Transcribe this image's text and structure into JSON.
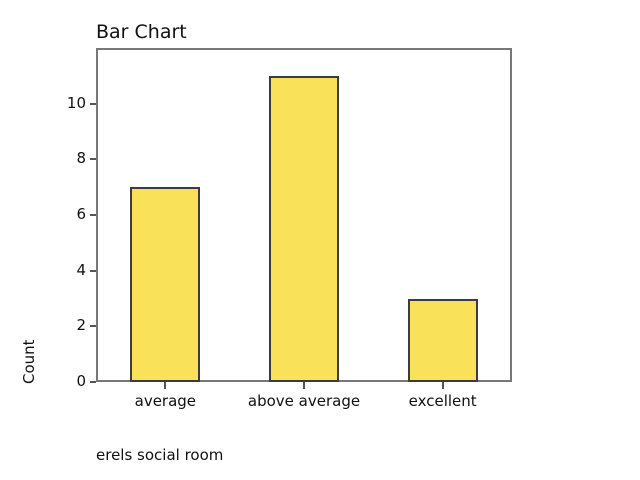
{
  "chart_data": {
    "type": "bar",
    "title": "Bar Chart",
    "categories": [
      "average",
      "above average",
      "excellent"
    ],
    "values": [
      7,
      11,
      3
    ],
    "ylabel": "Count",
    "xlabel": "erels social room",
    "ylim": [
      0,
      12
    ],
    "yticks": [
      0,
      2,
      4,
      6,
      8,
      10
    ],
    "grid": "off",
    "legend": "none",
    "colors": {
      "bar_fill": "#F9E25A",
      "bar_border": "#3C3C3C",
      "frame": "#787878",
      "tick": "#555555",
      "text": "#111111"
    }
  }
}
